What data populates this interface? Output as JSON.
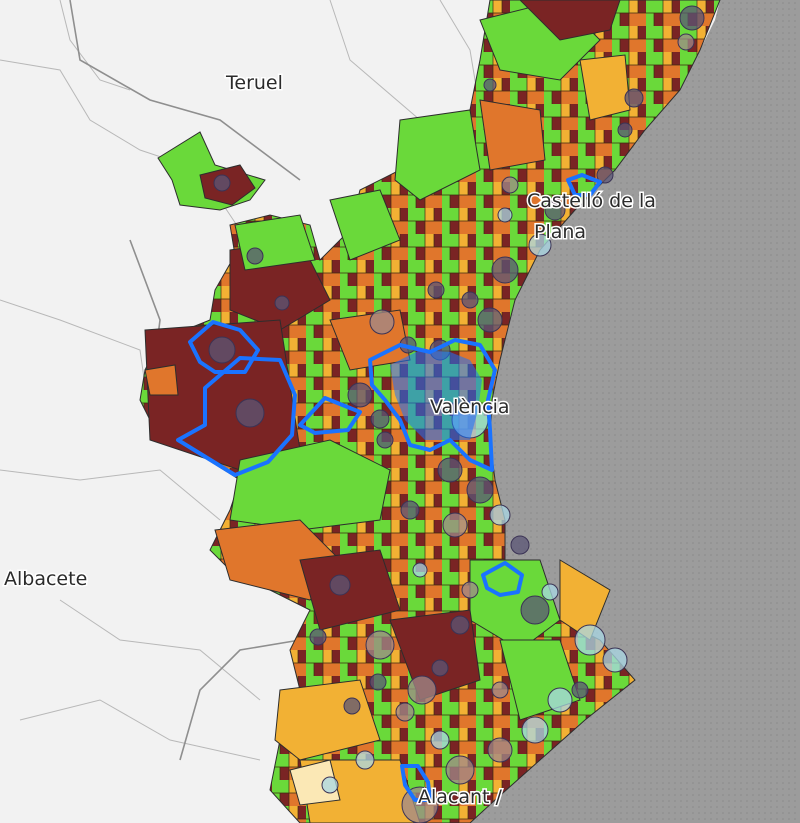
{
  "map": {
    "labels": {
      "teruel": "Teruel",
      "castellon_line1": "Castelló de la",
      "castellon_line2": "Plana",
      "valencia": "València",
      "albacete": "Albacete",
      "alicante": "Alacant /"
    },
    "colors": {
      "sea": "#9c9c9c",
      "land": "#f2f2f2",
      "green": "#6ad93a",
      "darkred": "#7a2424",
      "orange": "#e0762c",
      "yellow": "#f2b134",
      "cream": "#fbe8b5",
      "highlight": "#1a73ff",
      "bubble_dark": "#5b5575",
      "bubble_light": "#a9d8e6"
    }
  }
}
